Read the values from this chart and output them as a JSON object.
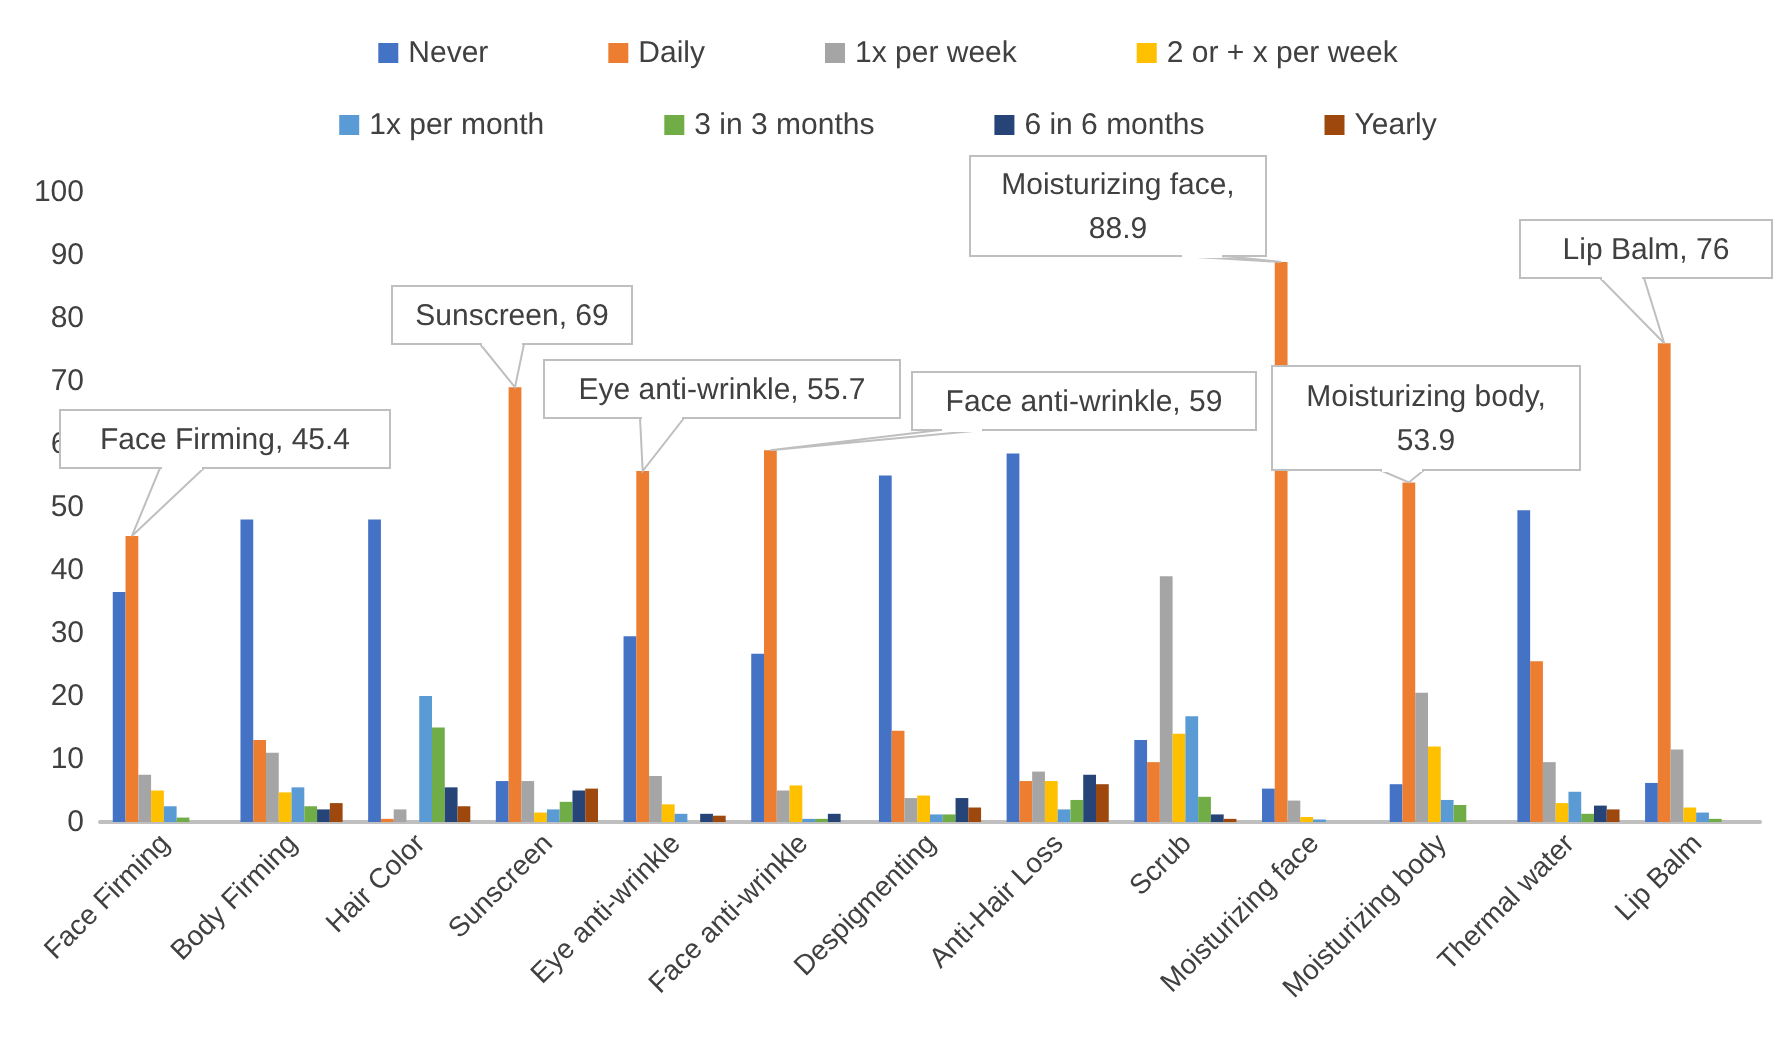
{
  "chart_data": {
    "type": "bar",
    "categories": [
      "Face Firming",
      "Body Firming",
      "Hair Color",
      "Sunscreen",
      "Eye anti-wrinkle",
      "Face anti-wrinkle",
      "Despigmenting",
      "Anti-Hair Loss",
      "Scrub",
      "Moisturizing face",
      "Moisturizing body",
      "Thermal water",
      "Lip Balm"
    ],
    "series": [
      {
        "name": "Never",
        "color": "#4472c4",
        "values": [
          36.5,
          48,
          48,
          6.5,
          29.5,
          26.7,
          55,
          58.5,
          13,
          5.3,
          6,
          49.5,
          6.2
        ]
      },
      {
        "name": "Daily",
        "color": "#ed7d31",
        "values": [
          45.4,
          13,
          0.5,
          69,
          55.7,
          59,
          14.5,
          6.5,
          9.5,
          88.9,
          53.9,
          25.5,
          76
        ]
      },
      {
        "name": "1x per week",
        "color": "#a5a5a5",
        "values": [
          7.5,
          11,
          2,
          6.5,
          7.3,
          5,
          3.8,
          8,
          39,
          3.4,
          20.5,
          9.5,
          11.5
        ]
      },
      {
        "name": "2 or + x per week",
        "color": "#ffc000",
        "values": [
          5,
          4.7,
          0,
          1.5,
          2.8,
          5.8,
          4.2,
          6.5,
          14,
          0.8,
          12,
          3,
          2.3
        ]
      },
      {
        "name": "1x per month",
        "color": "#5b9bd5",
        "values": [
          2.5,
          5.5,
          20,
          2,
          1.3,
          0.5,
          1.2,
          2,
          16.8,
          0.4,
          3.5,
          4.8,
          1.5
        ]
      },
      {
        "name": "3 in 3 months",
        "color": "#70ad47",
        "values": [
          0.7,
          2.5,
          15,
          3.2,
          0,
          0.5,
          1.2,
          3.5,
          4,
          0,
          2.7,
          1.3,
          0.5
        ]
      },
      {
        "name": "6 in 6 months",
        "color": "#264478",
        "values": [
          0,
          2,
          5.5,
          5,
          1.3,
          1.3,
          3.8,
          7.5,
          1.2,
          0,
          0,
          2.6,
          0
        ]
      },
      {
        "name": "Yearly",
        "color": "#9e480e",
        "values": [
          0,
          3,
          2.5,
          5.3,
          1,
          0,
          2.3,
          6,
          0.5,
          0,
          0,
          2,
          0
        ]
      }
    ],
    "ylim": [
      0,
      100
    ],
    "yticks": [
      0,
      10,
      20,
      30,
      40,
      50,
      60,
      70,
      80,
      90,
      100
    ],
    "grid": false,
    "legend": "top",
    "annotations": [
      "Face Firming, 45.4",
      "Sunscreen, 69",
      "Eye anti-wrinkle, 55.7",
      "Face anti-wrinkle, 59",
      "Moisturizing face, 88.9",
      "Moisturizing body, 53.9",
      "Lip Balm, 76"
    ]
  }
}
